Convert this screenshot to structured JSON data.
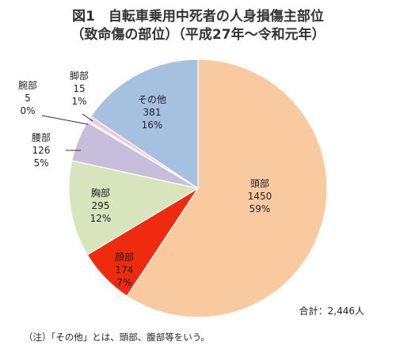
{
  "chart_data": {
    "type": "pie",
    "title": "図1　自転車乗用中死者の人身損傷主部位",
    "subtitle": "（致命傷の部位）（平成27年～令和元年）",
    "slices": [
      {
        "name": "頭部",
        "value": 1450,
        "percent": "59%",
        "color": "#f9c9a0"
      },
      {
        "name": "顔部",
        "value": 174,
        "percent": "7%",
        "color": "#ee2a0f"
      },
      {
        "name": "胸部",
        "value": 295,
        "percent": "12%",
        "color": "#d7e4bc"
      },
      {
        "name": "腰部",
        "value": 126,
        "percent": "5%",
        "color": "#c7bedb"
      },
      {
        "name": "腕部",
        "value": 5,
        "percent": "0%",
        "color": "#fde9d9"
      },
      {
        "name": "脚部",
        "value": 15,
        "percent": "1%",
        "color": "#f5c3dc"
      },
      {
        "name": "その他",
        "value": 381,
        "percent": "16%",
        "color": "#a6c1e0"
      }
    ],
    "total_label": "合計：2,446人",
    "note": "（注）「その他」とは、頭部、腹部等をいう。"
  }
}
